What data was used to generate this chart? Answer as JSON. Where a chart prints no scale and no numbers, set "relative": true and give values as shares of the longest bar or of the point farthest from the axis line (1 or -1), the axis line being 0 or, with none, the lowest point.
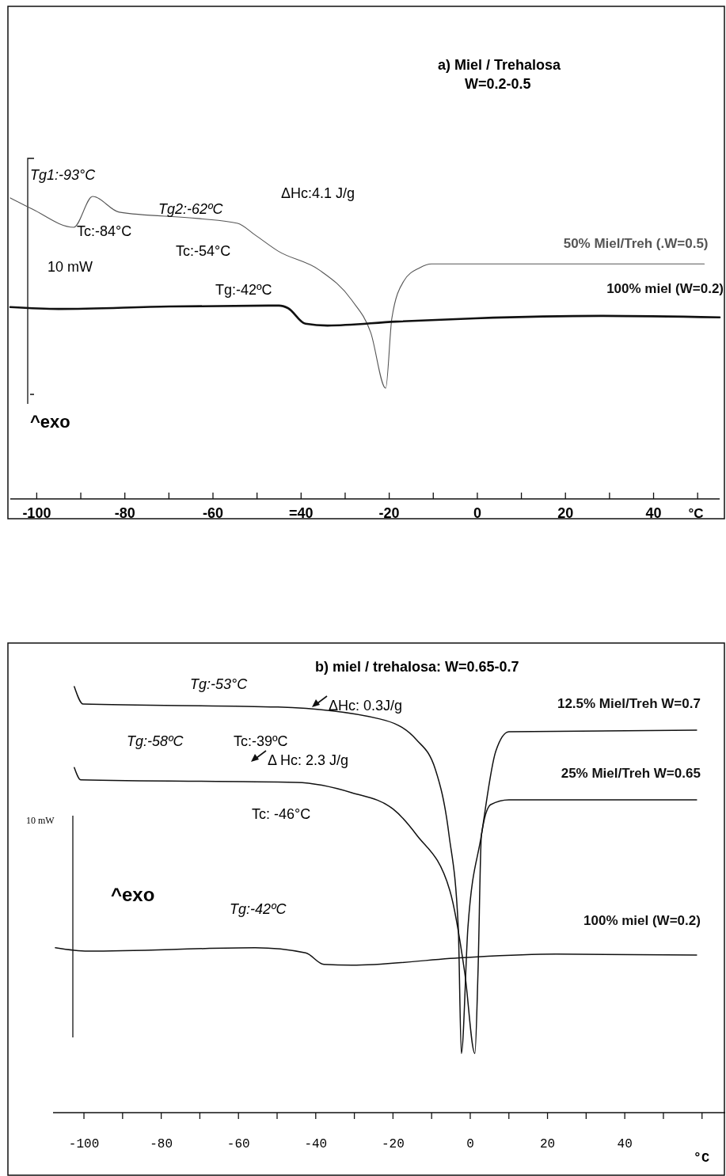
{
  "chart_data": [
    {
      "type": "line",
      "title": "a)  Miel / Trehalosa",
      "subtitle": "W=0.2-0.5",
      "xlabel": "°C",
      "relative": true,
      "xlim": [
        -106,
        55
      ],
      "xticks": [
        -100,
        {
          "value": -90,
          "label": null
        },
        -80,
        {
          "value": -70,
          "label": null
        },
        -60,
        {
          "value": -50,
          "label": null
        },
        {
          "value": -40,
          "label": "=40"
        },
        {
          "value": -30,
          "label": null
        },
        -20,
        {
          "value": -10,
          "label": null
        },
        0,
        {
          "value": 10,
          "label": null
        },
        20,
        {
          "value": 30,
          "label": null
        },
        40,
        {
          "value": 50,
          "label": null
        }
      ],
      "series": [
        {
          "name": "50% Miel/Treh (.W=0.5)",
          "color": "#555555",
          "x": [
            -106,
            -101,
            -91.6,
            -87.3,
            -81.3,
            -63.4,
            -54.4,
            -50.4,
            -45.2,
            -35.9,
            -28.5,
            -24.2,
            -20.8,
            -19.4,
            -16.7,
            -13.1,
            -10.4,
            51.5
          ],
          "values": [
            0.995,
            0.958,
            0.898,
            1,
            0.948,
            0.927,
            0.911,
            0.872,
            0.819,
            0.757,
            0.657,
            0.55,
            0.366,
            0.597,
            0.72,
            0.764,
            0.777,
            0.777
          ]
        },
        {
          "name": "100% miel (W=0.2)",
          "color": "#111111",
          "x": [
            -106,
            -95,
            -70,
            -45,
            -43,
            -39,
            -34,
            -18.5,
            -0.5,
            28,
            55
          ],
          "values": [
            0.634,
            0.628,
            0.636,
            0.639,
            0.631,
            0.579,
            0.573,
            0.586,
            0.597,
            0.605,
            0.6
          ]
        }
      ],
      "annotations": [
        "Tg1:-93°C",
        "ΔHc:4.1 J/g",
        "Tg2:-62ºC",
        "Tc:-84°C",
        "Tc:-54°C",
        "10 mW",
        "Tg:-42ºC",
        "^exo"
      ]
    },
    {
      "type": "line",
      "title": "b)  miel / trehalosa: W=0.65-0.7",
      "xlabel": "°C",
      "relative": true,
      "xlim": [
        -108,
        66
      ],
      "xticks": [
        -100,
        {
          "value": -90,
          "label": null
        },
        -80,
        {
          "value": -70,
          "label": null
        },
        -60,
        {
          "value": -50,
          "label": null
        },
        -40,
        {
          "value": -30,
          "label": null
        },
        -20,
        {
          "value": -10,
          "label": null
        },
        0,
        {
          "value": 10,
          "label": null
        },
        20,
        {
          "value": 30,
          "label": null
        },
        40,
        {
          "value": 50,
          "label": null
        },
        {
          "value": 60,
          "label": null
        }
      ],
      "series": [
        {
          "name": "12.5% Miel/Treh W=0.7",
          "color": "#111111",
          "x": [
            -102.5,
            -100.2,
            -49.8,
            -23.4,
            -13.9,
            -9,
            -5.5,
            -3.1,
            -2.3,
            -0.6,
            2.9,
            6.6,
            10,
            58.6
          ],
          "values": [
            1,
            0.959,
            0.952,
            0.924,
            0.875,
            0.805,
            0.652,
            0.435,
            0.139,
            0.435,
            0.652,
            0.848,
            0.894,
            0.898
          ]
        },
        {
          "name": "25% Miel/Treh W=0.65",
          "color": "#111111",
          "x": [
            -102.5,
            -100.8,
            -45.1,
            -30.7,
            -19.9,
            -13.9,
            -5.3,
            -1.4,
            1.2,
            2,
            2.9,
            5.3,
            10,
            58.6
          ],
          "values": [
            0.81,
            0.781,
            0.775,
            0.751,
            0.712,
            0.652,
            0.522,
            0.327,
            0.139,
            0.327,
            0.652,
            0.723,
            0.734,
            0.734
          ]
        },
        {
          "name": "100% miel (W=0.2)",
          "color": "#111111",
          "x": [
            -107.4,
            -99,
            -55.7,
            -42.6,
            -37.9,
            -30.7,
            -1.8,
            22.1,
            58.6
          ],
          "values": [
            0.387,
            0.379,
            0.387,
            0.375,
            0.348,
            0.346,
            0.364,
            0.372,
            0.37
          ]
        }
      ],
      "annotations": [
        "Tg:-53°C",
        "ΔHc: 0.3J/g",
        "Tg:-58ºC",
        "Tc:-39ºC",
        "Δ Hc: 2.3 J/g",
        "Tc: -46°C",
        "10 mW",
        "^exo",
        "Tg:-42ºC"
      ]
    }
  ]
}
